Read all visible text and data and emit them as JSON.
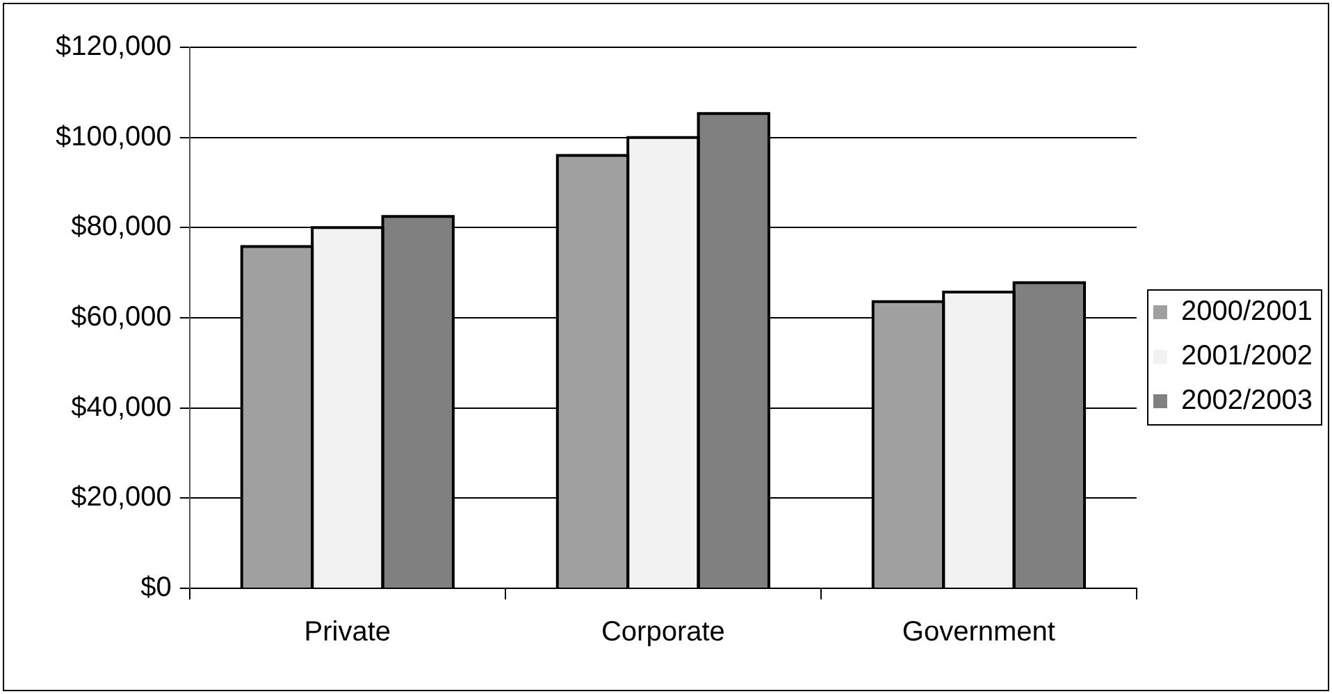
{
  "chart_data": {
    "type": "bar",
    "categories": [
      "Private",
      "Corporate",
      "Government"
    ],
    "series": [
      {
        "name": "2000/2001",
        "color": "#a0a0a0",
        "values": [
          75800,
          96000,
          63600
        ]
      },
      {
        "name": "2001/2002",
        "color": "#f2f2f2",
        "values": [
          80000,
          100000,
          65700
        ]
      },
      {
        "name": "2002/2003",
        "color": "#808080",
        "values": [
          82500,
          105300,
          67800
        ]
      }
    ],
    "ylim": [
      0,
      120000
    ],
    "yticks": [
      {
        "value": 0,
        "label": "$0"
      },
      {
        "value": 20000,
        "label": "$20,000"
      },
      {
        "value": 40000,
        "label": "$40,000"
      },
      {
        "value": 60000,
        "label": "$60,000"
      },
      {
        "value": 80000,
        "label": "$80,000"
      },
      {
        "value": 100000,
        "label": "$100,000"
      },
      {
        "value": 120000,
        "label": "$120,000"
      }
    ],
    "grid": "y",
    "legend": "right"
  }
}
